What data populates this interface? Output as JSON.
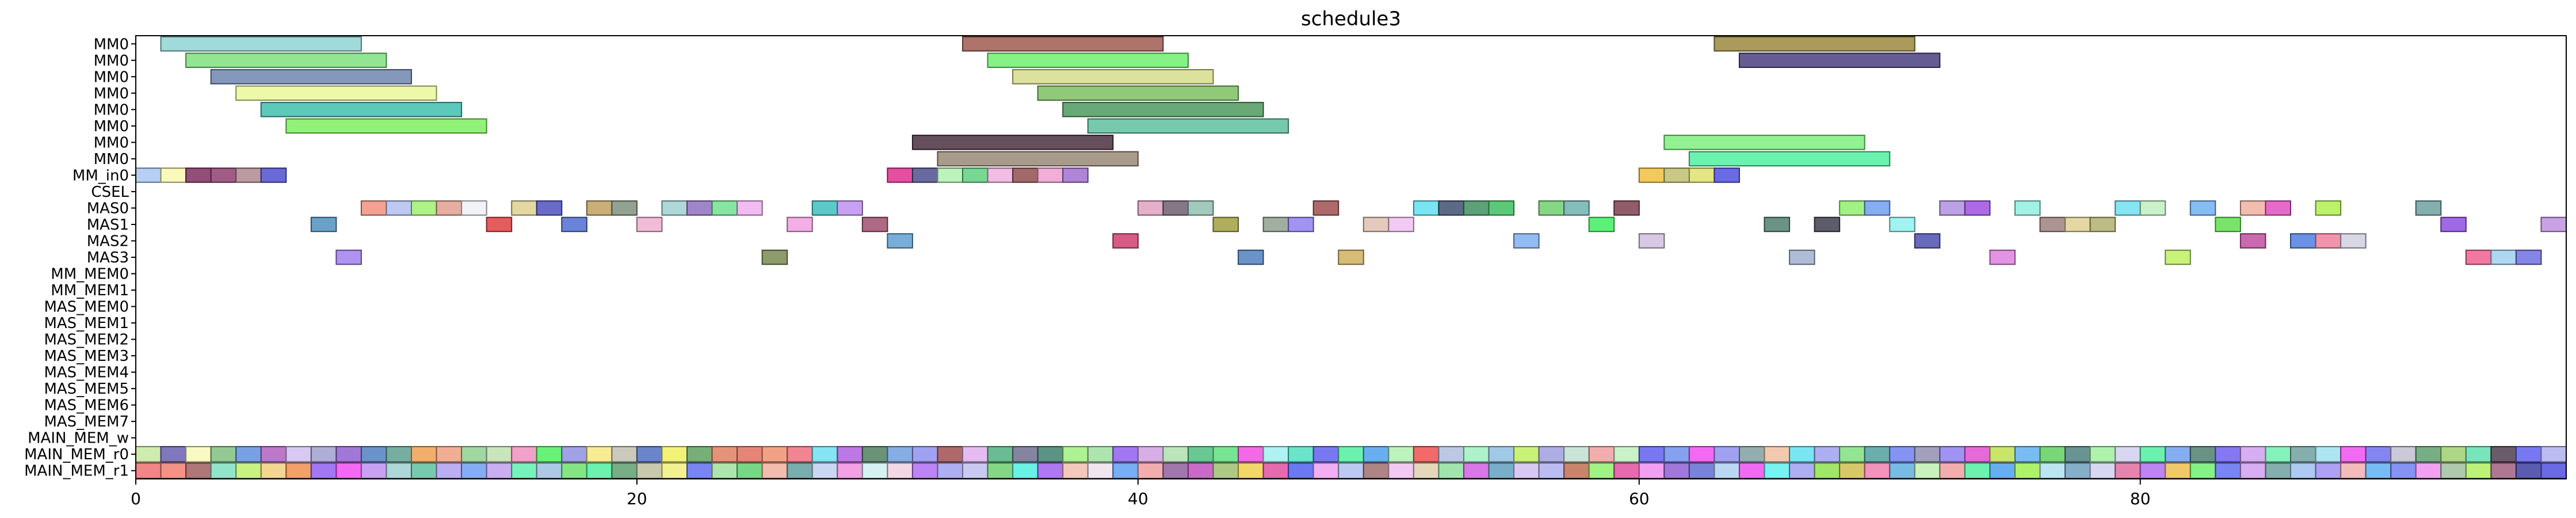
{
  "chart_data": {
    "type": "gantt",
    "title": "schedule3",
    "xlim": [
      0,
      97
    ],
    "x_ticks": [
      0,
      20,
      40,
      60,
      80
    ],
    "rows": [
      "MM0",
      "MM0",
      "MM0",
      "MM0",
      "MM0",
      "MM0",
      "MM0",
      "MM0",
      "MM_in0",
      "CSEL",
      "MAS0",
      "MAS1",
      "MAS2",
      "MAS3",
      "MM_MEM0",
      "MM_MEM1",
      "MAS_MEM0",
      "MAS_MEM1",
      "MAS_MEM2",
      "MAS_MEM3",
      "MAS_MEM4",
      "MAS_MEM5",
      "MAS_MEM6",
      "MAS_MEM7",
      "MAIN_MEM_w",
      "MAIN_MEM_r0",
      "MAIN_MEM_r1"
    ],
    "tasks": [
      {
        "row": 0,
        "start": 1,
        "end": 9,
        "color": "#8fd3d3"
      },
      {
        "row": 0,
        "start": 33,
        "end": 41,
        "color": "#a05a50"
      },
      {
        "row": 0,
        "start": 63,
        "end": 71,
        "color": "#9b8a40"
      },
      {
        "row": 1,
        "start": 2,
        "end": 10,
        "color": "#7fe07f"
      },
      {
        "row": 1,
        "start": 34,
        "end": 42,
        "color": "#6ff06f"
      },
      {
        "row": 1,
        "start": 64,
        "end": 72,
        "color": "#4a3f80"
      },
      {
        "row": 2,
        "start": 3,
        "end": 11,
        "color": "#6f86b0"
      },
      {
        "row": 2,
        "start": 35,
        "end": 43,
        "color": "#d6dc8c"
      },
      {
        "row": 3,
        "start": 4,
        "end": 12,
        "color": "#eaf79a"
      },
      {
        "row": 3,
        "start": 36,
        "end": 44,
        "color": "#7cc060"
      },
      {
        "row": 4,
        "start": 5,
        "end": 13,
        "color": "#3fbfaf"
      },
      {
        "row": 4,
        "start": 37,
        "end": 45,
        "color": "#4f9a60"
      },
      {
        "row": 5,
        "start": 6,
        "end": 14,
        "color": "#7ff05f"
      },
      {
        "row": 5,
        "start": 38,
        "end": 46,
        "color": "#5fc0a0"
      },
      {
        "row": 6,
        "start": 31,
        "end": 39,
        "color": "#4a3040"
      },
      {
        "row": 6,
        "start": 61,
        "end": 69,
        "color": "#7ff07f"
      },
      {
        "row": 7,
        "start": 32,
        "end": 40,
        "color": "#9a8a78"
      },
      {
        "row": 7,
        "start": 62,
        "end": 70,
        "color": "#50f0a0"
      },
      {
        "row": 8,
        "start": 0,
        "end": 1,
        "color": "#a8c8f0"
      },
      {
        "row": 8,
        "start": 1,
        "end": 2,
        "color": "#f8f8b0"
      },
      {
        "row": 8,
        "start": 2,
        "end": 3,
        "color": "#803060"
      },
      {
        "row": 8,
        "start": 3,
        "end": 4,
        "color": "#904070"
      },
      {
        "row": 8,
        "start": 4,
        "end": 5,
        "color": "#b08890"
      },
      {
        "row": 8,
        "start": 5,
        "end": 6,
        "color": "#5050d0"
      },
      {
        "row": 8,
        "start": 30,
        "end": 31,
        "color": "#e03090"
      },
      {
        "row": 8,
        "start": 31,
        "end": 32,
        "color": "#505090"
      },
      {
        "row": 8,
        "start": 32,
        "end": 33,
        "color": "#b0f0b0"
      },
      {
        "row": 8,
        "start": 33,
        "end": 34,
        "color": "#60d080"
      },
      {
        "row": 8,
        "start": 34,
        "end": 35,
        "color": "#f0b0e0"
      },
      {
        "row": 8,
        "start": 35,
        "end": 36,
        "color": "#905050"
      },
      {
        "row": 8,
        "start": 36,
        "end": 37,
        "color": "#f0a0d0"
      },
      {
        "row": 8,
        "start": 37,
        "end": 38,
        "color": "#a070d0"
      },
      {
        "row": 8,
        "start": 60,
        "end": 61,
        "color": "#f0c040"
      },
      {
        "row": 8,
        "start": 61,
        "end": 62,
        "color": "#c0c070"
      },
      {
        "row": 8,
        "start": 62,
        "end": 63,
        "color": "#e0e070"
      },
      {
        "row": 8,
        "start": 63,
        "end": 64,
        "color": "#5050e0"
      },
      {
        "row": 10,
        "start": 9,
        "end": 10,
        "color": "#f09080"
      },
      {
        "row": 10,
        "start": 10,
        "end": 11,
        "color": "#b0c0f0"
      },
      {
        "row": 10,
        "start": 11,
        "end": 12,
        "color": "#a0f070"
      },
      {
        "row": 10,
        "start": 12,
        "end": 13,
        "color": "#e0a090"
      },
      {
        "row": 10,
        "start": 13,
        "end": 14,
        "color": "#f0f0f8"
      },
      {
        "row": 10,
        "start": 15,
        "end": 16,
        "color": "#e0d090"
      },
      {
        "row": 10,
        "start": 16,
        "end": 17,
        "color": "#5050c0"
      },
      {
        "row": 10,
        "start": 18,
        "end": 19,
        "color": "#c0a060"
      },
      {
        "row": 10,
        "start": 19,
        "end": 20,
        "color": "#809080"
      },
      {
        "row": 10,
        "start": 21,
        "end": 22,
        "color": "#a0d0d0"
      },
      {
        "row": 10,
        "start": 22,
        "end": 23,
        "color": "#9070c0"
      },
      {
        "row": 10,
        "start": 23,
        "end": 24,
        "color": "#70e090"
      },
      {
        "row": 10,
        "start": 24,
        "end": 25,
        "color": "#f0b0f0"
      },
      {
        "row": 10,
        "start": 27,
        "end": 28,
        "color": "#40c0c0"
      },
      {
        "row": 10,
        "start": 28,
        "end": 29,
        "color": "#c090f0"
      },
      {
        "row": 10,
        "start": 40,
        "end": 41,
        "color": "#e0a0c0"
      },
      {
        "row": 10,
        "start": 41,
        "end": 42,
        "color": "#706070"
      },
      {
        "row": 10,
        "start": 42,
        "end": 43,
        "color": "#90c0b0"
      },
      {
        "row": 10,
        "start": 47,
        "end": 48,
        "color": "#a05050"
      },
      {
        "row": 10,
        "start": 51,
        "end": 52,
        "color": "#60e0f0"
      },
      {
        "row": 10,
        "start": 52,
        "end": 53,
        "color": "#405070"
      },
      {
        "row": 10,
        "start": 53,
        "end": 54,
        "color": "#409060"
      },
      {
        "row": 10,
        "start": 54,
        "end": 55,
        "color": "#40c060"
      },
      {
        "row": 10,
        "start": 56,
        "end": 57,
        "color": "#70d070"
      },
      {
        "row": 10,
        "start": 57,
        "end": 58,
        "color": "#70b0b0"
      },
      {
        "row": 10,
        "start": 59,
        "end": 60,
        "color": "#804050"
      },
      {
        "row": 10,
        "start": 68,
        "end": 69,
        "color": "#90f070"
      },
      {
        "row": 10,
        "start": 69,
        "end": 70,
        "color": "#70a0f0"
      },
      {
        "row": 10,
        "start": 72,
        "end": 73,
        "color": "#b090e0"
      },
      {
        "row": 10,
        "start": 73,
        "end": 74,
        "color": "#a050e0"
      },
      {
        "row": 10,
        "start": 75,
        "end": 76,
        "color": "#90f0e0"
      },
      {
        "row": 10,
        "start": 79,
        "end": 80,
        "color": "#70e0f0"
      },
      {
        "row": 10,
        "start": 80,
        "end": 81,
        "color": "#c0f0c0"
      },
      {
        "row": 10,
        "start": 82,
        "end": 83,
        "color": "#70b0f0"
      },
      {
        "row": 10,
        "start": 84,
        "end": 85,
        "color": "#f0b0a0"
      },
      {
        "row": 10,
        "start": 85,
        "end": 86,
        "color": "#e050c0"
      },
      {
        "row": 10,
        "start": 87,
        "end": 88,
        "color": "#b0f050"
      },
      {
        "row": 10,
        "start": 91,
        "end": 92,
        "color": "#70a0a0"
      },
      {
        "row": 11,
        "start": 7,
        "end": 8,
        "color": "#5090c0"
      },
      {
        "row": 11,
        "start": 14,
        "end": 15,
        "color": "#e04040"
      },
      {
        "row": 11,
        "start": 17,
        "end": 18,
        "color": "#5070d0"
      },
      {
        "row": 11,
        "start": 20,
        "end": 21,
        "color": "#f0b0d0"
      },
      {
        "row": 11,
        "start": 26,
        "end": 27,
        "color": "#f0a0e0"
      },
      {
        "row": 11,
        "start": 29,
        "end": 30,
        "color": "#a05070"
      },
      {
        "row": 11,
        "start": 43,
        "end": 44,
        "color": "#a0a040"
      },
      {
        "row": 11,
        "start": 45,
        "end": 46,
        "color": "#90a090"
      },
      {
        "row": 11,
        "start": 46,
        "end": 47,
        "color": "#9080f0"
      },
      {
        "row": 11,
        "start": 49,
        "end": 50,
        "color": "#e0c0b0"
      },
      {
        "row": 11,
        "start": 50,
        "end": 51,
        "color": "#f0c0f0"
      },
      {
        "row": 11,
        "start": 58,
        "end": 59,
        "color": "#40f060"
      },
      {
        "row": 11,
        "start": 65,
        "end": 66,
        "color": "#508070"
      },
      {
        "row": 11,
        "start": 67,
        "end": 68,
        "color": "#404050"
      },
      {
        "row": 11,
        "start": 70,
        "end": 71,
        "color": "#90f0f0"
      },
      {
        "row": 11,
        "start": 76,
        "end": 77,
        "color": "#a08080"
      },
      {
        "row": 11,
        "start": 77,
        "end": 78,
        "color": "#e0d090"
      },
      {
        "row": 11,
        "start": 78,
        "end": 79,
        "color": "#b0b070"
      },
      {
        "row": 11,
        "start": 83,
        "end": 84,
        "color": "#60e050"
      },
      {
        "row": 11,
        "start": 92,
        "end": 93,
        "color": "#9050e0"
      },
      {
        "row": 11,
        "start": 96,
        "end": 97,
        "color": "#c090e0"
      },
      {
        "row": 12,
        "start": 30,
        "end": 31,
        "color": "#60a0d0"
      },
      {
        "row": 12,
        "start": 39,
        "end": 40,
        "color": "#d04070"
      },
      {
        "row": 12,
        "start": 55,
        "end": 56,
        "color": "#80b0f0"
      },
      {
        "row": 12,
        "start": 60,
        "end": 61,
        "color": "#d0c0e0"
      },
      {
        "row": 12,
        "start": 71,
        "end": 72,
        "color": "#5050b0"
      },
      {
        "row": 12,
        "start": 84,
        "end": 85,
        "color": "#c050a0"
      },
      {
        "row": 12,
        "start": 86,
        "end": 87,
        "color": "#5080e0"
      },
      {
        "row": 12,
        "start": 87,
        "end": 88,
        "color": "#f080a0"
      },
      {
        "row": 12,
        "start": 88,
        "end": 89,
        "color": "#d0d0e0"
      },
      {
        "row": 13,
        "start": 8,
        "end": 9,
        "color": "#a080f0"
      },
      {
        "row": 13,
        "start": 25,
        "end": 26,
        "color": "#7a8a50"
      },
      {
        "row": 13,
        "start": 44,
        "end": 45,
        "color": "#5080c0"
      },
      {
        "row": 13,
        "start": 48,
        "end": 49,
        "color": "#d0b060"
      },
      {
        "row": 13,
        "start": 66,
        "end": 67,
        "color": "#a0b0d0"
      },
      {
        "row": 13,
        "start": 74,
        "end": 75,
        "color": "#e080e0"
      },
      {
        "row": 13,
        "start": 81,
        "end": 82,
        "color": "#c0f060"
      },
      {
        "row": 13,
        "start": 93,
        "end": 94,
        "color": "#f06090"
      },
      {
        "row": 13,
        "start": 94,
        "end": 95,
        "color": "#a0d0f0"
      },
      {
        "row": 13,
        "start": 95,
        "end": 96,
        "color": "#7070e0"
      }
    ],
    "mem_rows": [
      {
        "row": 25,
        "colors": [
          "#c8e8a0",
          "#6a60b0",
          "#f8f8b8",
          "#80c080",
          "#6090e0",
          "#b060c0",
          "#d0c0f0",
          "#a0a0d0",
          "#9060d0",
          "#5080c0",
          "#60a090",
          "#f0a050",
          "#f0a080",
          "#90d090",
          "#c0e0b0",
          "#f090c0",
          "#50f060",
          "#9090e0",
          "#f8e880",
          "#c0c0b0",
          "#5070c0",
          "#f0f060",
          "#60a060",
          "#e08060",
          "#e07060",
          "#f09070",
          "#f07080",
          "#70e0f0",
          "#b060e0",
          "#508060",
          "#70a0e0",
          "#9090f0",
          "#a05050",
          "#e0b0f0",
          "#50b080",
          "#707090",
          "#408070",
          "#a0f080",
          "#a0e0a0",
          "#9060f0",
          "#d0a0e0",
          "#b0e0b0",
          "#50c080",
          "#60e080",
          "#f050e0",
          "#a0f0f0",
          "#50e0c0",
          "#6060f0",
          "#50f0a0",
          "#50a0f0",
          "#b0f0b0",
          "#f05050",
          "#b0c0e0",
          "#a0f0c0",
          "#90c0e0",
          "#c0f060",
          "#a0a0e0",
          "#c0e0d0",
          "#f0a0a0",
          "#c0f0c0",
          "#6060f0",
          "#7090f0",
          "#f050f0",
          "#9090f0",
          "#80a0a0",
          "#f0c0a0",
          "#60e0f0",
          "#a0a0f0",
          "#80e080",
          "#50a0a0",
          "#7080f0",
          "#9090b0",
          "#9080f0",
          "#e050d0",
          "#c0e050",
          "#60b0f0",
          "#60d060",
          "#508080",
          "#a0f0a0",
          "#d0d0f0",
          "#50f0a0",
          "#70a0f0",
          "#508070",
          "#7060f0",
          "#d0a0f0",
          "#70f0b0",
          "#70a0a0",
          "#a0e0f0",
          "#f050f0",
          "#7070f0",
          "#c0c0d0",
          "#60a070",
          "#a0d070",
          "#60e0b0",
          "#504050",
          "#6060f0",
          "#b0b0f0"
        ]
      },
      {
        "row": 26,
        "colors": [
          "#f07070",
          "#f08070",
          "#a06060",
          "#80e0c0",
          "#c0f070",
          "#f0d080",
          "#f09050",
          "#9060f0",
          "#f050f0",
          "#c090f0",
          "#a0d0d0",
          "#60c0a0",
          "#b0a0f0",
          "#70a0f0",
          "#c0a0f0",
          "#60f0b0",
          "#a0c0e0",
          "#70e070",
          "#50f0a0",
          "#60a070",
          "#c0c0a0",
          "#f0f080",
          "#6070f0",
          "#a0e0a0",
          "#60d070",
          "#f0b0a0",
          "#60a0a0",
          "#c0d0f0",
          "#f090e0",
          "#d0f0f0",
          "#f0d0e0",
          "#b070f0",
          "#a0a0f0",
          "#c0c0f0",
          "#70d070",
          "#50f0e0",
          "#a060f0",
          "#f0c0b0",
          "#f0e0f0",
          "#60a0f0",
          "#f0a0a0",
          "#9060a0",
          "#c050c0",
          "#a0c070",
          "#f0d050",
          "#e050a0",
          "#5060f0",
          "#f0a0f0",
          "#b0c0f0",
          "#a07070",
          "#f0c0f0",
          "#e0d0b0",
          "#90e0a0",
          "#d060e0",
          "#60a0c0",
          "#d0c0f0",
          "#b0b0f0",
          "#c07050",
          "#90f070",
          "#e050a0",
          "#f090f0",
          "#9060d0",
          "#6070d0",
          "#b0d0f0",
          "#f050f0",
          "#60f0f0",
          "#a0a0f0",
          "#90e050",
          "#d0c050",
          "#f080b0",
          "#60b0e0",
          "#c0f0b0",
          "#f0a0a0",
          "#50f0a0",
          "#50a0f0",
          "#a0f050",
          "#b0e0f0",
          "#70a0c0",
          "#d0d0f0",
          "#e070a0",
          "#b070f0",
          "#f0c050",
          "#70f070",
          "#6070f0",
          "#d0a0f0",
          "#70a0a0",
          "#a0c0f0",
          "#a090f0",
          "#f0b0b0",
          "#60b0f0",
          "#7080f0",
          "#f090f0",
          "#a0c0a0",
          "#b0f060",
          "#a06080",
          "#4040a0",
          "#5050e0"
        ]
      }
    ]
  }
}
